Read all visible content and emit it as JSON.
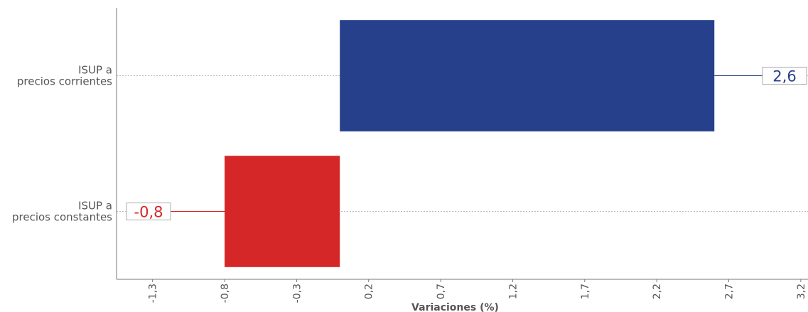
{
  "chart_data": {
    "type": "bar",
    "orientation": "horizontal",
    "categories": [
      "ISUP a\nprecios corrientes",
      "ISUP a\nprecios constantes"
    ],
    "values": [
      2.6,
      -0.8
    ],
    "value_labels": [
      "2,6",
      "-0,8"
    ],
    "colors": [
      "#27408b",
      "#d62728"
    ],
    "xlabel": "Variaciones (%)",
    "ylabel": "",
    "xlim": [
      -1.55,
      3.25
    ],
    "xticks": [
      -1.3,
      -0.8,
      -0.3,
      0.2,
      0.7,
      1.2,
      1.7,
      2.2,
      2.7,
      3.2
    ],
    "xtick_labels": [
      "-1,3",
      "-0,8",
      "-0,3",
      "0,2",
      "0,7",
      "1,2",
      "1,7",
      "2,2",
      "2,7",
      "3,2"
    ],
    "grid": "horizontal dotted lines at categories",
    "legend": "none"
  }
}
